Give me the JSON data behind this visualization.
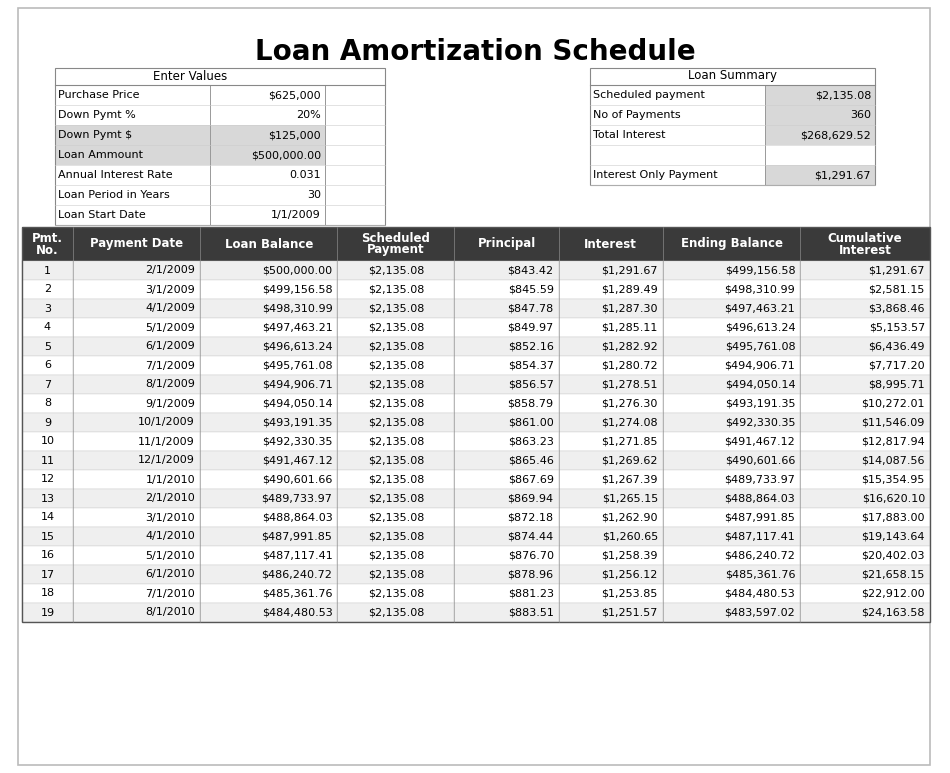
{
  "title": "Loan Amortization Schedule",
  "enter_values_header": "Enter Values",
  "loan_summary_header": "Loan Summary",
  "enter_values": [
    [
      "Purchase Price",
      "$625,000"
    ],
    [
      "Down Pymt %",
      "20%"
    ],
    [
      "Down Pymt $",
      "$125,000"
    ],
    [
      "Loan Ammount",
      "$500,000.00"
    ],
    [
      "Annual Interest Rate",
      "0.031"
    ],
    [
      "Loan Period in Years",
      "30"
    ],
    [
      "Loan Start Date",
      "1/1/2009"
    ]
  ],
  "loan_summary": [
    [
      "Scheduled payment",
      "$2,135.08"
    ],
    [
      "No of Payments",
      "360"
    ],
    [
      "Total Interest",
      "$268,629.52"
    ],
    [
      "",
      ""
    ],
    [
      "Interest Only Payment",
      "$1,291.67"
    ]
  ],
  "table_headers": [
    "Pmt.\nNo.",
    "Payment Date",
    "Loan Balance",
    "Scheduled\nPayment",
    "Principal",
    "Interest",
    "Ending Balance",
    "Cumulative\nInterest"
  ],
  "table_data": [
    [
      "1",
      "2/1/2009",
      "$500,000.00",
      "$2,135.08",
      "$843.42",
      "$1,291.67",
      "$499,156.58",
      "$1,291.67"
    ],
    [
      "2",
      "3/1/2009",
      "$499,156.58",
      "$2,135.08",
      "$845.59",
      "$1,289.49",
      "$498,310.99",
      "$2,581.15"
    ],
    [
      "3",
      "4/1/2009",
      "$498,310.99",
      "$2,135.08",
      "$847.78",
      "$1,287.30",
      "$497,463.21",
      "$3,868.46"
    ],
    [
      "4",
      "5/1/2009",
      "$497,463.21",
      "$2,135.08",
      "$849.97",
      "$1,285.11",
      "$496,613.24",
      "$5,153.57"
    ],
    [
      "5",
      "6/1/2009",
      "$496,613.24",
      "$2,135.08",
      "$852.16",
      "$1,282.92",
      "$495,761.08",
      "$6,436.49"
    ],
    [
      "6",
      "7/1/2009",
      "$495,761.08",
      "$2,135.08",
      "$854.37",
      "$1,280.72",
      "$494,906.71",
      "$7,717.20"
    ],
    [
      "7",
      "8/1/2009",
      "$494,906.71",
      "$2,135.08",
      "$856.57",
      "$1,278.51",
      "$494,050.14",
      "$8,995.71"
    ],
    [
      "8",
      "9/1/2009",
      "$494,050.14",
      "$2,135.08",
      "$858.79",
      "$1,276.30",
      "$493,191.35",
      "$10,272.01"
    ],
    [
      "9",
      "10/1/2009",
      "$493,191.35",
      "$2,135.08",
      "$861.00",
      "$1,274.08",
      "$492,330.35",
      "$11,546.09"
    ],
    [
      "10",
      "11/1/2009",
      "$492,330.35",
      "$2,135.08",
      "$863.23",
      "$1,271.85",
      "$491,467.12",
      "$12,817.94"
    ],
    [
      "11",
      "12/1/2009",
      "$491,467.12",
      "$2,135.08",
      "$865.46",
      "$1,269.62",
      "$490,601.66",
      "$14,087.56"
    ],
    [
      "12",
      "1/1/2010",
      "$490,601.66",
      "$2,135.08",
      "$867.69",
      "$1,267.39",
      "$489,733.97",
      "$15,354.95"
    ],
    [
      "13",
      "2/1/2010",
      "$489,733.97",
      "$2,135.08",
      "$869.94",
      "$1,265.15",
      "$488,864.03",
      "$16,620.10"
    ],
    [
      "14",
      "3/1/2010",
      "$488,864.03",
      "$2,135.08",
      "$872.18",
      "$1,262.90",
      "$487,991.85",
      "$17,883.00"
    ],
    [
      "15",
      "4/1/2010",
      "$487,991.85",
      "$2,135.08",
      "$874.44",
      "$1,260.65",
      "$487,117.41",
      "$19,143.64"
    ],
    [
      "16",
      "5/1/2010",
      "$487,117.41",
      "$2,135.08",
      "$876.70",
      "$1,258.39",
      "$486,240.72",
      "$20,402.03"
    ],
    [
      "17",
      "6/1/2010",
      "$486,240.72",
      "$2,135.08",
      "$878.96",
      "$1,256.12",
      "$485,361.76",
      "$21,658.15"
    ],
    [
      "18",
      "7/1/2010",
      "$485,361.76",
      "$2,135.08",
      "$881.23",
      "$1,253.85",
      "$484,480.53",
      "$22,912.00"
    ],
    [
      "19",
      "8/1/2010",
      "$484,480.53",
      "$2,135.08",
      "$883.51",
      "$1,251.57",
      "$483,597.02",
      "$24,163.58"
    ]
  ],
  "header_bg": "#3a3a3a",
  "header_fg": "#ffffff",
  "row_bg_even": "#ffffff",
  "row_bg_odd": "#efefef",
  "title_fontsize": 20,
  "header_fontsize": 8.5,
  "cell_fontsize": 8,
  "info_fontsize": 8,
  "gray_cell_bg": "#d8d8d8",
  "page_bg": "#ffffff",
  "outer_border": "#aaaaaa"
}
